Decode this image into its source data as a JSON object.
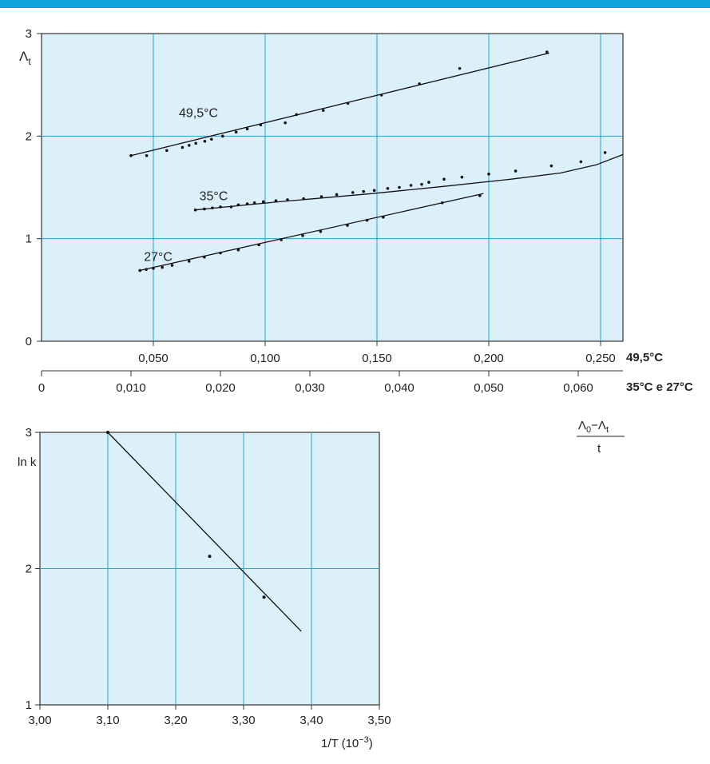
{
  "style": {
    "accent": "#0ea5dc",
    "panel_fill": "#dcf0fb",
    "grid_color": "#1aa6e0",
    "line_color": "#111111"
  },
  "chart_data": [
    {
      "type": "scatter",
      "title": "",
      "ylabel_main": "Λ",
      "ylabel_sub": "t",
      "ylim": [
        0,
        3
      ],
      "y_ticks": [
        0,
        1,
        2,
        3
      ],
      "y_tick_labels": [
        "0",
        "1",
        "2",
        "3"
      ],
      "grid": true,
      "x_axes": [
        {
          "label": "49,5°C",
          "applies_to": [
            "49,5°C"
          ],
          "xlim": [
            0,
            0.26
          ],
          "ticks": [
            0.05,
            0.1,
            0.15,
            0.2,
            0.25
          ],
          "tick_labels": [
            "0,050",
            "0,100",
            "0,150",
            "0,200",
            "0,250"
          ]
        },
        {
          "label": "35°C e 27°C",
          "applies_to": [
            "35°C",
            "27°C"
          ],
          "xlim": [
            0,
            0.065
          ],
          "ticks": [
            0,
            0.01,
            0.02,
            0.03,
            0.04,
            0.05,
            0.06
          ],
          "tick_labels": [
            "0",
            "0,010",
            "0,020",
            "0,030",
            "0,040",
            "0,050",
            "0,060"
          ]
        }
      ],
      "x_quantity": {
        "numerator_main": "Λ",
        "numerator_sub1": "0",
        "numerator_mid": "−Λ",
        "numerator_sub2": "t",
        "denominator": "t"
      },
      "series": [
        {
          "name": "49,5°C",
          "axis": 0,
          "fit": [
            [
              0.04,
              1.81
            ],
            [
              0.227,
              2.81
            ]
          ],
          "points": [
            [
              0.04,
              1.81
            ],
            [
              0.047,
              1.81
            ],
            [
              0.056,
              1.86
            ],
            [
              0.063,
              1.89
            ],
            [
              0.066,
              1.91
            ],
            [
              0.069,
              1.93
            ],
            [
              0.073,
              1.95
            ],
            [
              0.076,
              1.97
            ],
            [
              0.081,
              2.0
            ],
            [
              0.087,
              2.04
            ],
            [
              0.092,
              2.07
            ],
            [
              0.098,
              2.11
            ],
            [
              0.109,
              2.13
            ],
            [
              0.114,
              2.21
            ],
            [
              0.126,
              2.25
            ],
            [
              0.137,
              2.32
            ],
            [
              0.152,
              2.4
            ],
            [
              0.169,
              2.51
            ],
            [
              0.187,
              2.66
            ],
            [
              0.226,
              2.82
            ]
          ]
        },
        {
          "name": "35°C",
          "axis": 1,
          "fit": [
            [
              0.0172,
              1.28
            ],
            [
              0.0265,
              1.36
            ],
            [
              0.037,
              1.44
            ],
            [
              0.045,
              1.51
            ],
            [
              0.0525,
              1.58
            ],
            [
              0.058,
              1.64
            ],
            [
              0.062,
              1.72
            ],
            [
              0.065,
              1.82
            ]
          ],
          "points": [
            [
              0.0172,
              1.28
            ],
            [
              0.0182,
              1.29
            ],
            [
              0.0191,
              1.3
            ],
            [
              0.02,
              1.31
            ],
            [
              0.0212,
              1.31
            ],
            [
              0.022,
              1.33
            ],
            [
              0.023,
              1.34
            ],
            [
              0.0238,
              1.35
            ],
            [
              0.0248,
              1.36
            ],
            [
              0.0262,
              1.37
            ],
            [
              0.0275,
              1.38
            ],
            [
              0.0293,
              1.39
            ],
            [
              0.0313,
              1.41
            ],
            [
              0.033,
              1.43
            ],
            [
              0.0348,
              1.45
            ],
            [
              0.036,
              1.46
            ],
            [
              0.0372,
              1.47
            ],
            [
              0.0387,
              1.49
            ],
            [
              0.04,
              1.5
            ],
            [
              0.0413,
              1.52
            ],
            [
              0.0425,
              1.53
            ],
            [
              0.0433,
              1.55
            ],
            [
              0.045,
              1.58
            ],
            [
              0.047,
              1.6
            ],
            [
              0.05,
              1.63
            ],
            [
              0.053,
              1.66
            ],
            [
              0.057,
              1.71
            ],
            [
              0.0603,
              1.75
            ],
            [
              0.063,
              1.84
            ]
          ]
        },
        {
          "name": "27°C",
          "axis": 1,
          "fit": [
            [
              0.011,
              0.69
            ],
            [
              0.0494,
              1.44
            ]
          ],
          "points": [
            [
              0.011,
              0.69
            ],
            [
              0.0117,
              0.7
            ],
            [
              0.0125,
              0.71
            ],
            [
              0.0135,
              0.72
            ],
            [
              0.0146,
              0.74
            ],
            [
              0.0165,
              0.78
            ],
            [
              0.0182,
              0.82
            ],
            [
              0.02,
              0.86
            ],
            [
              0.022,
              0.89
            ],
            [
              0.0243,
              0.94
            ],
            [
              0.0268,
              0.99
            ],
            [
              0.0292,
              1.03
            ],
            [
              0.0312,
              1.07
            ],
            [
              0.0342,
              1.13
            ],
            [
              0.0364,
              1.18
            ],
            [
              0.0382,
              1.21
            ],
            [
              0.0448,
              1.35
            ],
            [
              0.049,
              1.42
            ]
          ]
        }
      ]
    },
    {
      "type": "scatter",
      "title": "",
      "ylabel": "ln k",
      "xlabel_main": "1/T (10",
      "xlabel_exp": "−3",
      "xlabel_close": ")",
      "xlim": [
        3.0,
        3.5
      ],
      "ylim": [
        1,
        3
      ],
      "x_ticks": [
        3.0,
        3.1,
        3.2,
        3.3,
        3.4,
        3.5
      ],
      "x_tick_labels": [
        "3,00",
        "3,10",
        "3,20",
        "3,30",
        "3,40",
        "3,50"
      ],
      "y_ticks": [
        1,
        2,
        3
      ],
      "y_tick_labels": [
        "1",
        "2",
        "3"
      ],
      "grid": true,
      "series": [
        {
          "name": "",
          "fit": [
            [
              3.1,
              3.0
            ],
            [
              3.385,
              1.54
            ]
          ],
          "points": [
            [
              3.1,
              3.0
            ],
            [
              3.25,
              2.09
            ],
            [
              3.33,
              1.79
            ]
          ]
        }
      ]
    }
  ]
}
